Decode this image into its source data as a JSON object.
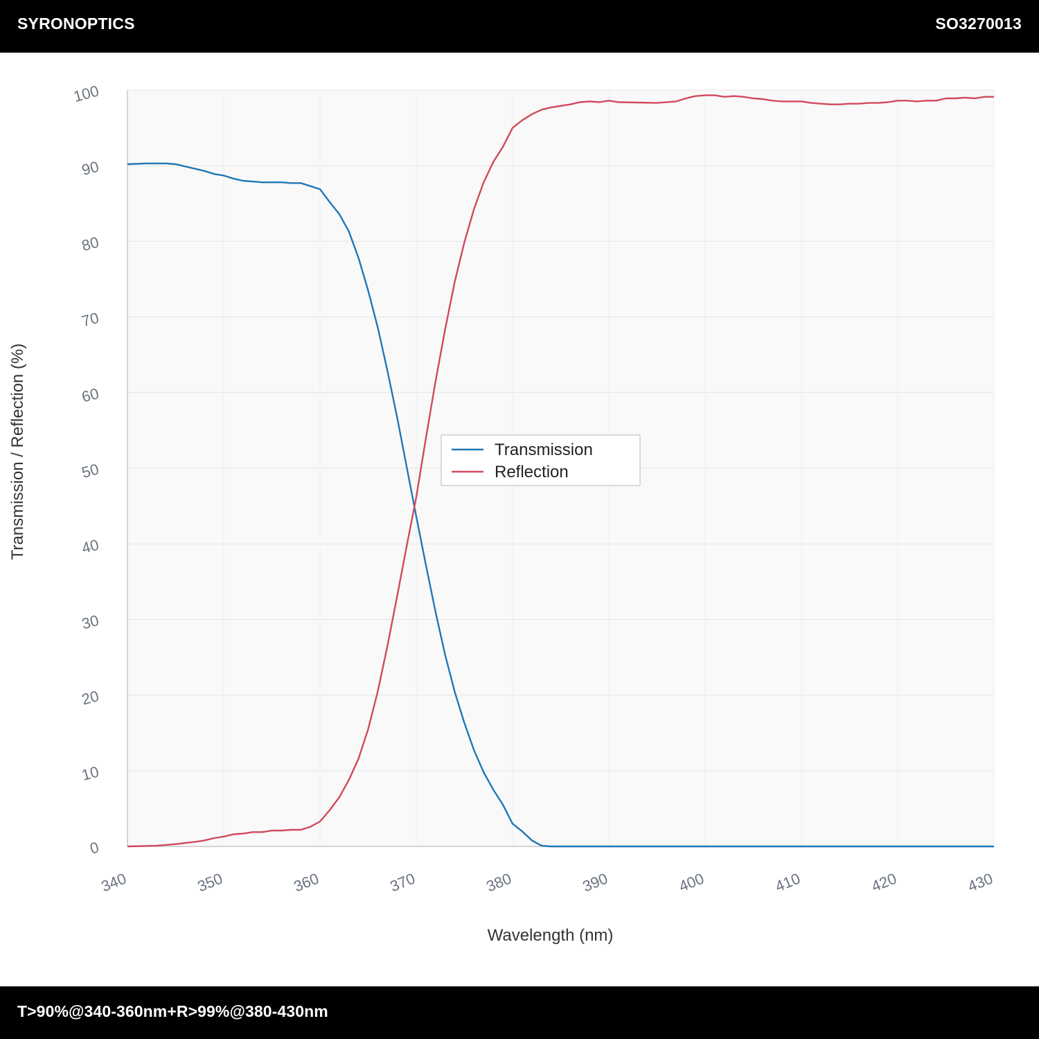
{
  "header": {
    "brand": "SYRONOPTICS",
    "part_number": "SO3270013"
  },
  "footer": {
    "spec": "T>90%@340-360nm+R>99%@380-430nm"
  },
  "colors": {
    "transmission": "#1f77b4",
    "reflection": "#d1495b",
    "plot_background": "#f9f9f9",
    "grid": "#e4e4e4",
    "bars": "#000000"
  },
  "chart_data": {
    "type": "line",
    "title": "",
    "xlabel": "Wavelength (nm)",
    "ylabel": "Transmission / Reflection (%)",
    "xlim": [
      340,
      430
    ],
    "ylim": [
      0,
      100
    ],
    "x_ticks": [
      340,
      350,
      360,
      370,
      380,
      390,
      400,
      410,
      420,
      430
    ],
    "y_ticks": [
      0,
      10,
      20,
      30,
      40,
      50,
      60,
      70,
      80,
      90,
      100
    ],
    "grid": true,
    "legend_position": "center",
    "series": [
      {
        "name": "Transmission",
        "color": "#1f77b4",
        "x": [
          340,
          342,
          344,
          345,
          346,
          348,
          349,
          350,
          351,
          352,
          353,
          354,
          355,
          356,
          357,
          358,
          359,
          360,
          361,
          362,
          363,
          364,
          365,
          366,
          367,
          368,
          369,
          370,
          371,
          372,
          373,
          374,
          375,
          376,
          377,
          378,
          379,
          380,
          381,
          382,
          383,
          384,
          385,
          390,
          400,
          410,
          420,
          430
        ],
        "y": [
          90.2,
          90.3,
          90.3,
          90.2,
          89.9,
          89.3,
          88.9,
          88.7,
          88.3,
          88.0,
          87.9,
          87.8,
          87.8,
          87.8,
          87.7,
          87.7,
          87.3,
          86.9,
          85.2,
          83.6,
          81.3,
          77.8,
          73.5,
          68.6,
          62.9,
          56.8,
          50.2,
          43.6,
          37.2,
          31.0,
          25.3,
          20.4,
          16.3,
          12.7,
          9.8,
          7.5,
          5.5,
          3.0,
          2.0,
          0.8,
          0.1,
          0.0,
          0.0,
          0.0,
          0.0,
          0.0,
          0.0,
          0.0
        ]
      },
      {
        "name": "Reflection",
        "color": "#d1495b",
        "x": [
          340,
          343,
          345,
          347,
          348,
          349,
          350,
          351,
          352,
          353,
          354,
          355,
          356,
          357,
          358,
          359,
          360,
          361,
          362,
          363,
          364,
          365,
          366,
          367,
          368,
          369,
          370,
          371,
          372,
          373,
          374,
          375,
          376,
          377,
          378,
          379,
          380,
          381,
          382,
          383,
          384,
          386,
          387,
          388,
          389,
          390,
          391,
          395,
          397,
          398,
          399,
          400,
          401,
          402,
          403,
          404,
          405,
          406,
          407,
          408,
          409,
          410,
          411,
          412,
          413,
          414,
          415,
          416,
          417,
          418,
          419,
          420,
          421,
          422,
          423,
          424,
          425,
          426,
          427,
          428,
          429,
          430
        ],
        "y": [
          0.0,
          0.1,
          0.3,
          0.6,
          0.8,
          1.1,
          1.3,
          1.6,
          1.7,
          1.9,
          1.9,
          2.1,
          2.1,
          2.2,
          2.2,
          2.6,
          3.3,
          4.8,
          6.5,
          8.8,
          11.6,
          15.5,
          20.5,
          26.5,
          33.0,
          39.7,
          46.2,
          54.0,
          61.5,
          68.4,
          74.7,
          79.9,
          84.3,
          87.8,
          90.5,
          92.5,
          95.0,
          96.0,
          96.8,
          97.4,
          97.7,
          98.1,
          98.4,
          98.5,
          98.4,
          98.6,
          98.4,
          98.3,
          98.5,
          98.9,
          99.2,
          99.3,
          99.3,
          99.1,
          99.2,
          99.1,
          98.9,
          98.8,
          98.6,
          98.5,
          98.5,
          98.5,
          98.3,
          98.2,
          98.1,
          98.1,
          98.2,
          98.2,
          98.3,
          98.3,
          98.4,
          98.6,
          98.6,
          98.5,
          98.6,
          98.6,
          98.9,
          98.9,
          99.0,
          98.9,
          99.1,
          99.1
        ]
      }
    ]
  }
}
